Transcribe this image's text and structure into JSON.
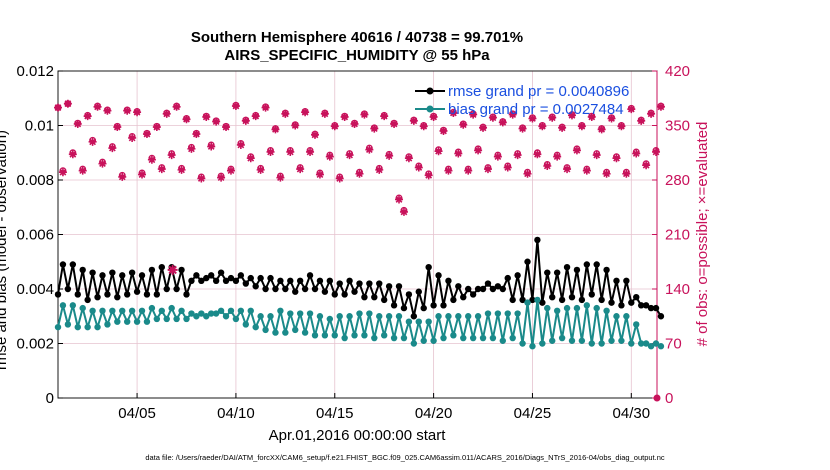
{
  "chart_data": {
    "type": "line",
    "title": "Southern Hemisphere 40616 / 40738 = 99.701%",
    "subtitle": "AIRS_SPECIFIC_HUMIDITY @ 55 hPa",
    "xlabel": "Apr.01,2016 00:00:00 start",
    "ylabel_left": "rmse and bias (model - observation)",
    "ylabel_right": "# of obs: o=possible; ×=evaluated",
    "xlim": [
      1,
      31.3
    ],
    "ylim_left": [
      0,
      0.012
    ],
    "ylim_right": [
      0,
      420
    ],
    "x_ticks": [
      5,
      10,
      15,
      20,
      25,
      30
    ],
    "x_tick_labels": [
      "04/05",
      "04/10",
      "04/15",
      "04/20",
      "04/25",
      "04/30"
    ],
    "y_left_ticks": [
      0,
      0.002,
      0.004,
      0.006,
      0.008,
      0.01,
      0.012
    ],
    "y_left_tick_labels": [
      "0",
      "0.002",
      "0.004",
      "0.006",
      "0.008",
      "0.01",
      "0.012"
    ],
    "y_right_ticks": [
      0,
      70,
      140,
      210,
      280,
      350,
      420
    ],
    "y_right_tick_labels": [
      "0",
      "70",
      "140",
      "210",
      "280",
      "350",
      "420"
    ],
    "grid": true,
    "legend": {
      "position": "top-right",
      "entries": [
        {
          "label": "rmse grand pr = 0.0040896",
          "color": "#000000"
        },
        {
          "label": "bias grand pr = 0.0027484",
          "color": "#1a8a8a"
        }
      ]
    },
    "footer": "data file: /Users/raeder/DAI/ATM_forcXX/CAM6_setup/f.e21.FHIST_BGC.f09_025.CAM6assim.011/ACARS_2016/Diags_NTrS_2016-04/obs_diag_output.nc",
    "series": [
      {
        "name": "rmse",
        "color": "#000000",
        "axis": "left",
        "x_start": 1,
        "x_step": 0.25,
        "values": [
          0.0038,
          0.0049,
          0.004,
          0.0049,
          0.0038,
          0.0047,
          0.0036,
          0.0046,
          0.0037,
          0.0045,
          0.0038,
          0.0046,
          0.0037,
          0.0045,
          0.0038,
          0.0046,
          0.0039,
          0.0045,
          0.0038,
          0.0047,
          0.0038,
          0.0048,
          0.004,
          0.0048,
          0.004,
          0.0047,
          0.0038,
          0.0043,
          0.0045,
          0.0043,
          0.0044,
          0.0045,
          0.0043,
          0.0046,
          0.0043,
          0.0044,
          0.0043,
          0.0045,
          0.0042,
          0.0044,
          0.0041,
          0.0044,
          0.004,
          0.0044,
          0.004,
          0.0043,
          0.004,
          0.0043,
          0.0039,
          0.0043,
          0.004,
          0.0045,
          0.004,
          0.0043,
          0.0039,
          0.0043,
          0.0038,
          0.0042,
          0.0038,
          0.0043,
          0.0039,
          0.0042,
          0.0037,
          0.0042,
          0.0037,
          0.0042,
          0.0036,
          0.0041,
          0.0034,
          0.0041,
          0.0033,
          0.0038,
          0.003,
          0.0039,
          0.0033,
          0.0048,
          0.0034,
          0.0045,
          0.0034,
          0.0043,
          0.0036,
          0.0041,
          0.0037,
          0.004,
          0.0038,
          0.004,
          0.004,
          0.0042,
          0.004,
          0.0041,
          0.004,
          0.0044,
          0.0036,
          0.0045,
          0.0036,
          0.005,
          0.0036,
          0.0058,
          0.0035,
          0.0046,
          0.0037,
          0.0046,
          0.0036,
          0.0048,
          0.0037,
          0.0047,
          0.0036,
          0.0049,
          0.0038,
          0.0049,
          0.0036,
          0.0047,
          0.0035,
          0.0043,
          0.0034,
          0.0043,
          0.0035,
          0.0037,
          0.0034,
          0.0034,
          0.0033,
          0.0033,
          0.003
        ]
      },
      {
        "name": "bias",
        "color": "#1a8a8a",
        "axis": "left",
        "x_start": 1,
        "x_step": 0.25,
        "values": [
          0.0026,
          0.0034,
          0.0027,
          0.0034,
          0.0026,
          0.0033,
          0.0026,
          0.0032,
          0.0026,
          0.0032,
          0.0027,
          0.0032,
          0.0028,
          0.0032,
          0.0028,
          0.0032,
          0.0028,
          0.0032,
          0.0028,
          0.0033,
          0.0029,
          0.0032,
          0.0029,
          0.0033,
          0.0029,
          0.0032,
          0.0029,
          0.0031,
          0.003,
          0.0031,
          0.003,
          0.0031,
          0.0031,
          0.0032,
          0.003,
          0.0032,
          0.0029,
          0.0032,
          0.0027,
          0.0032,
          0.0026,
          0.003,
          0.0025,
          0.003,
          0.0024,
          0.0032,
          0.0024,
          0.0031,
          0.0025,
          0.0031,
          0.0024,
          0.0031,
          0.0023,
          0.003,
          0.0023,
          0.0029,
          0.0023,
          0.003,
          0.0022,
          0.003,
          0.0023,
          0.0031,
          0.0023,
          0.0031,
          0.0022,
          0.003,
          0.0023,
          0.003,
          0.0022,
          0.003,
          0.0022,
          0.0028,
          0.002,
          0.0028,
          0.0021,
          0.0028,
          0.0021,
          0.003,
          0.0022,
          0.003,
          0.0023,
          0.003,
          0.0022,
          0.003,
          0.0022,
          0.003,
          0.0022,
          0.0031,
          0.0022,
          0.0031,
          0.0021,
          0.0031,
          0.0022,
          0.0031,
          0.002,
          0.0035,
          0.0019,
          0.0036,
          0.002,
          0.0033,
          0.0021,
          0.0032,
          0.0022,
          0.0033,
          0.0021,
          0.0033,
          0.0021,
          0.0034,
          0.002,
          0.0033,
          0.002,
          0.0032,
          0.0021,
          0.003,
          0.0021,
          0.003,
          0.002,
          0.0027,
          0.002,
          0.002,
          0.0019,
          0.002,
          0.0019
        ]
      },
      {
        "name": "obs possible",
        "color": "#c8125b",
        "axis": "right",
        "marker": "circle",
        "x_start": 1,
        "x_step": 0.25,
        "values": [
          373,
          292,
          378,
          315,
          353,
          294,
          363,
          331,
          375,
          303,
          370,
          323,
          349,
          286,
          370,
          336,
          368,
          289,
          340,
          308,
          349,
          296,
          366,
          314,
          375,
          295,
          359,
          322,
          340,
          284,
          362,
          325,
          356,
          285,
          349,
          294,
          376,
          327,
          357,
          310,
          363,
          295,
          374,
          318,
          346,
          285,
          366,
          318,
          351,
          296,
          368,
          318,
          339,
          289,
          366,
          312,
          350,
          284,
          362,
          314,
          353,
          290,
          365,
          321,
          347,
          295,
          363,
          313,
          353,
          257,
          241,
          310,
          357,
          298,
          350,
          288,
          362,
          319,
          344,
          294,
          367,
          316,
          352,
          294,
          365,
          320,
          348,
          296,
          361,
          312,
          355,
          298,
          365,
          314,
          347,
          290,
          360,
          315,
          350,
          300,
          361,
          312,
          348,
          296,
          364,
          320,
          350,
          294,
          362,
          314,
          346,
          290,
          360,
          310,
          350,
          290,
          372,
          316,
          357,
          301,
          366,
          318,
          375
        ]
      },
      {
        "name": "obs evaluated",
        "color": "#c8125b",
        "axis": "right",
        "marker": "x",
        "x_start": 1,
        "x_step": 0.25,
        "values": [
          373,
          290,
          378,
          313,
          352,
          292,
          362,
          329,
          374,
          301,
          369,
          321,
          348,
          284,
          369,
          334,
          367,
          287,
          339,
          306,
          348,
          294,
          365,
          312,
          374,
          293,
          358,
          320,
          339,
          282,
          361,
          323,
          355,
          283,
          348,
          292,
          375,
          325,
          356,
          308,
          362,
          293,
          373,
          316,
          345,
          283,
          365,
          316,
          350,
          294,
          367,
          316,
          338,
          287,
          365,
          310,
          349,
          282,
          361,
          312,
          352,
          288,
          364,
          319,
          346,
          293,
          362,
          311,
          352,
          255,
          239,
          308,
          356,
          296,
          349,
          286,
          361,
          317,
          343,
          292,
          366,
          314,
          351,
          292,
          364,
          318,
          347,
          294,
          360,
          310,
          354,
          296,
          364,
          312,
          346,
          288,
          359,
          313,
          349,
          298,
          360,
          310,
          347,
          294,
          363,
          318,
          349,
          292,
          361,
          312,
          345,
          288,
          359,
          308,
          349,
          288,
          371,
          314,
          356,
          299,
          365,
          316,
          374
        ]
      }
    ],
    "annotations": [
      {
        "type": "marker",
        "x": 6.8,
        "y": 0.0047,
        "axis": "left",
        "color": "#c8125b",
        "shape": "star"
      }
    ]
  }
}
